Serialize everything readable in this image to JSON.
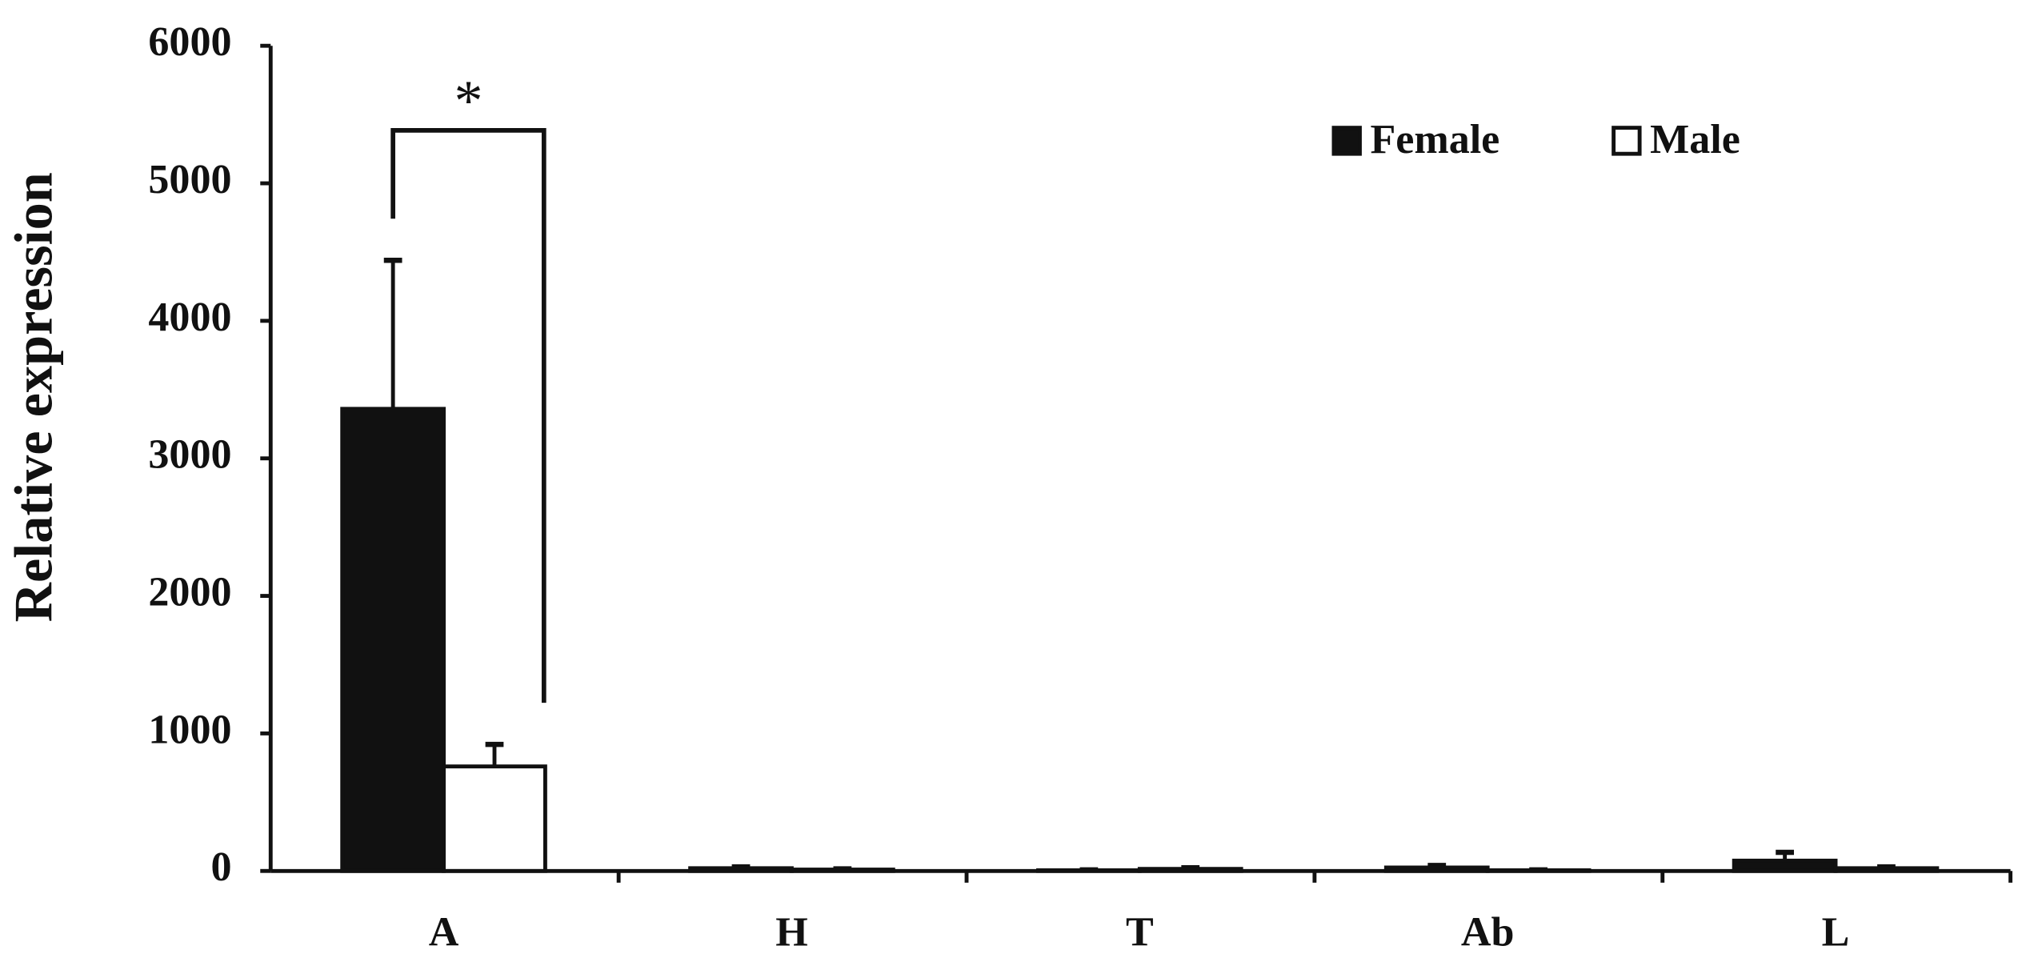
{
  "chart_data": {
    "type": "bar",
    "y_label": "Relative expression",
    "categories": [
      "A",
      "H",
      "T",
      "Ab",
      "L"
    ],
    "series": [
      {
        "name": "Female",
        "color": "#111111",
        "values": [
          3360,
          20,
          5,
          25,
          75
        ],
        "errors": [
          1080,
          10,
          3,
          15,
          60
        ]
      },
      {
        "name": "Male",
        "color": "#ffffff",
        "values": [
          760,
          10,
          15,
          5,
          20
        ],
        "errors": [
          160,
          5,
          8,
          3,
          10
        ]
      }
    ],
    "ylim": [
      0,
      6000
    ],
    "yticks": [
      0,
      1000,
      2000,
      3000,
      4000,
      5000,
      6000
    ],
    "annotation": "*",
    "legend": "top-right"
  }
}
